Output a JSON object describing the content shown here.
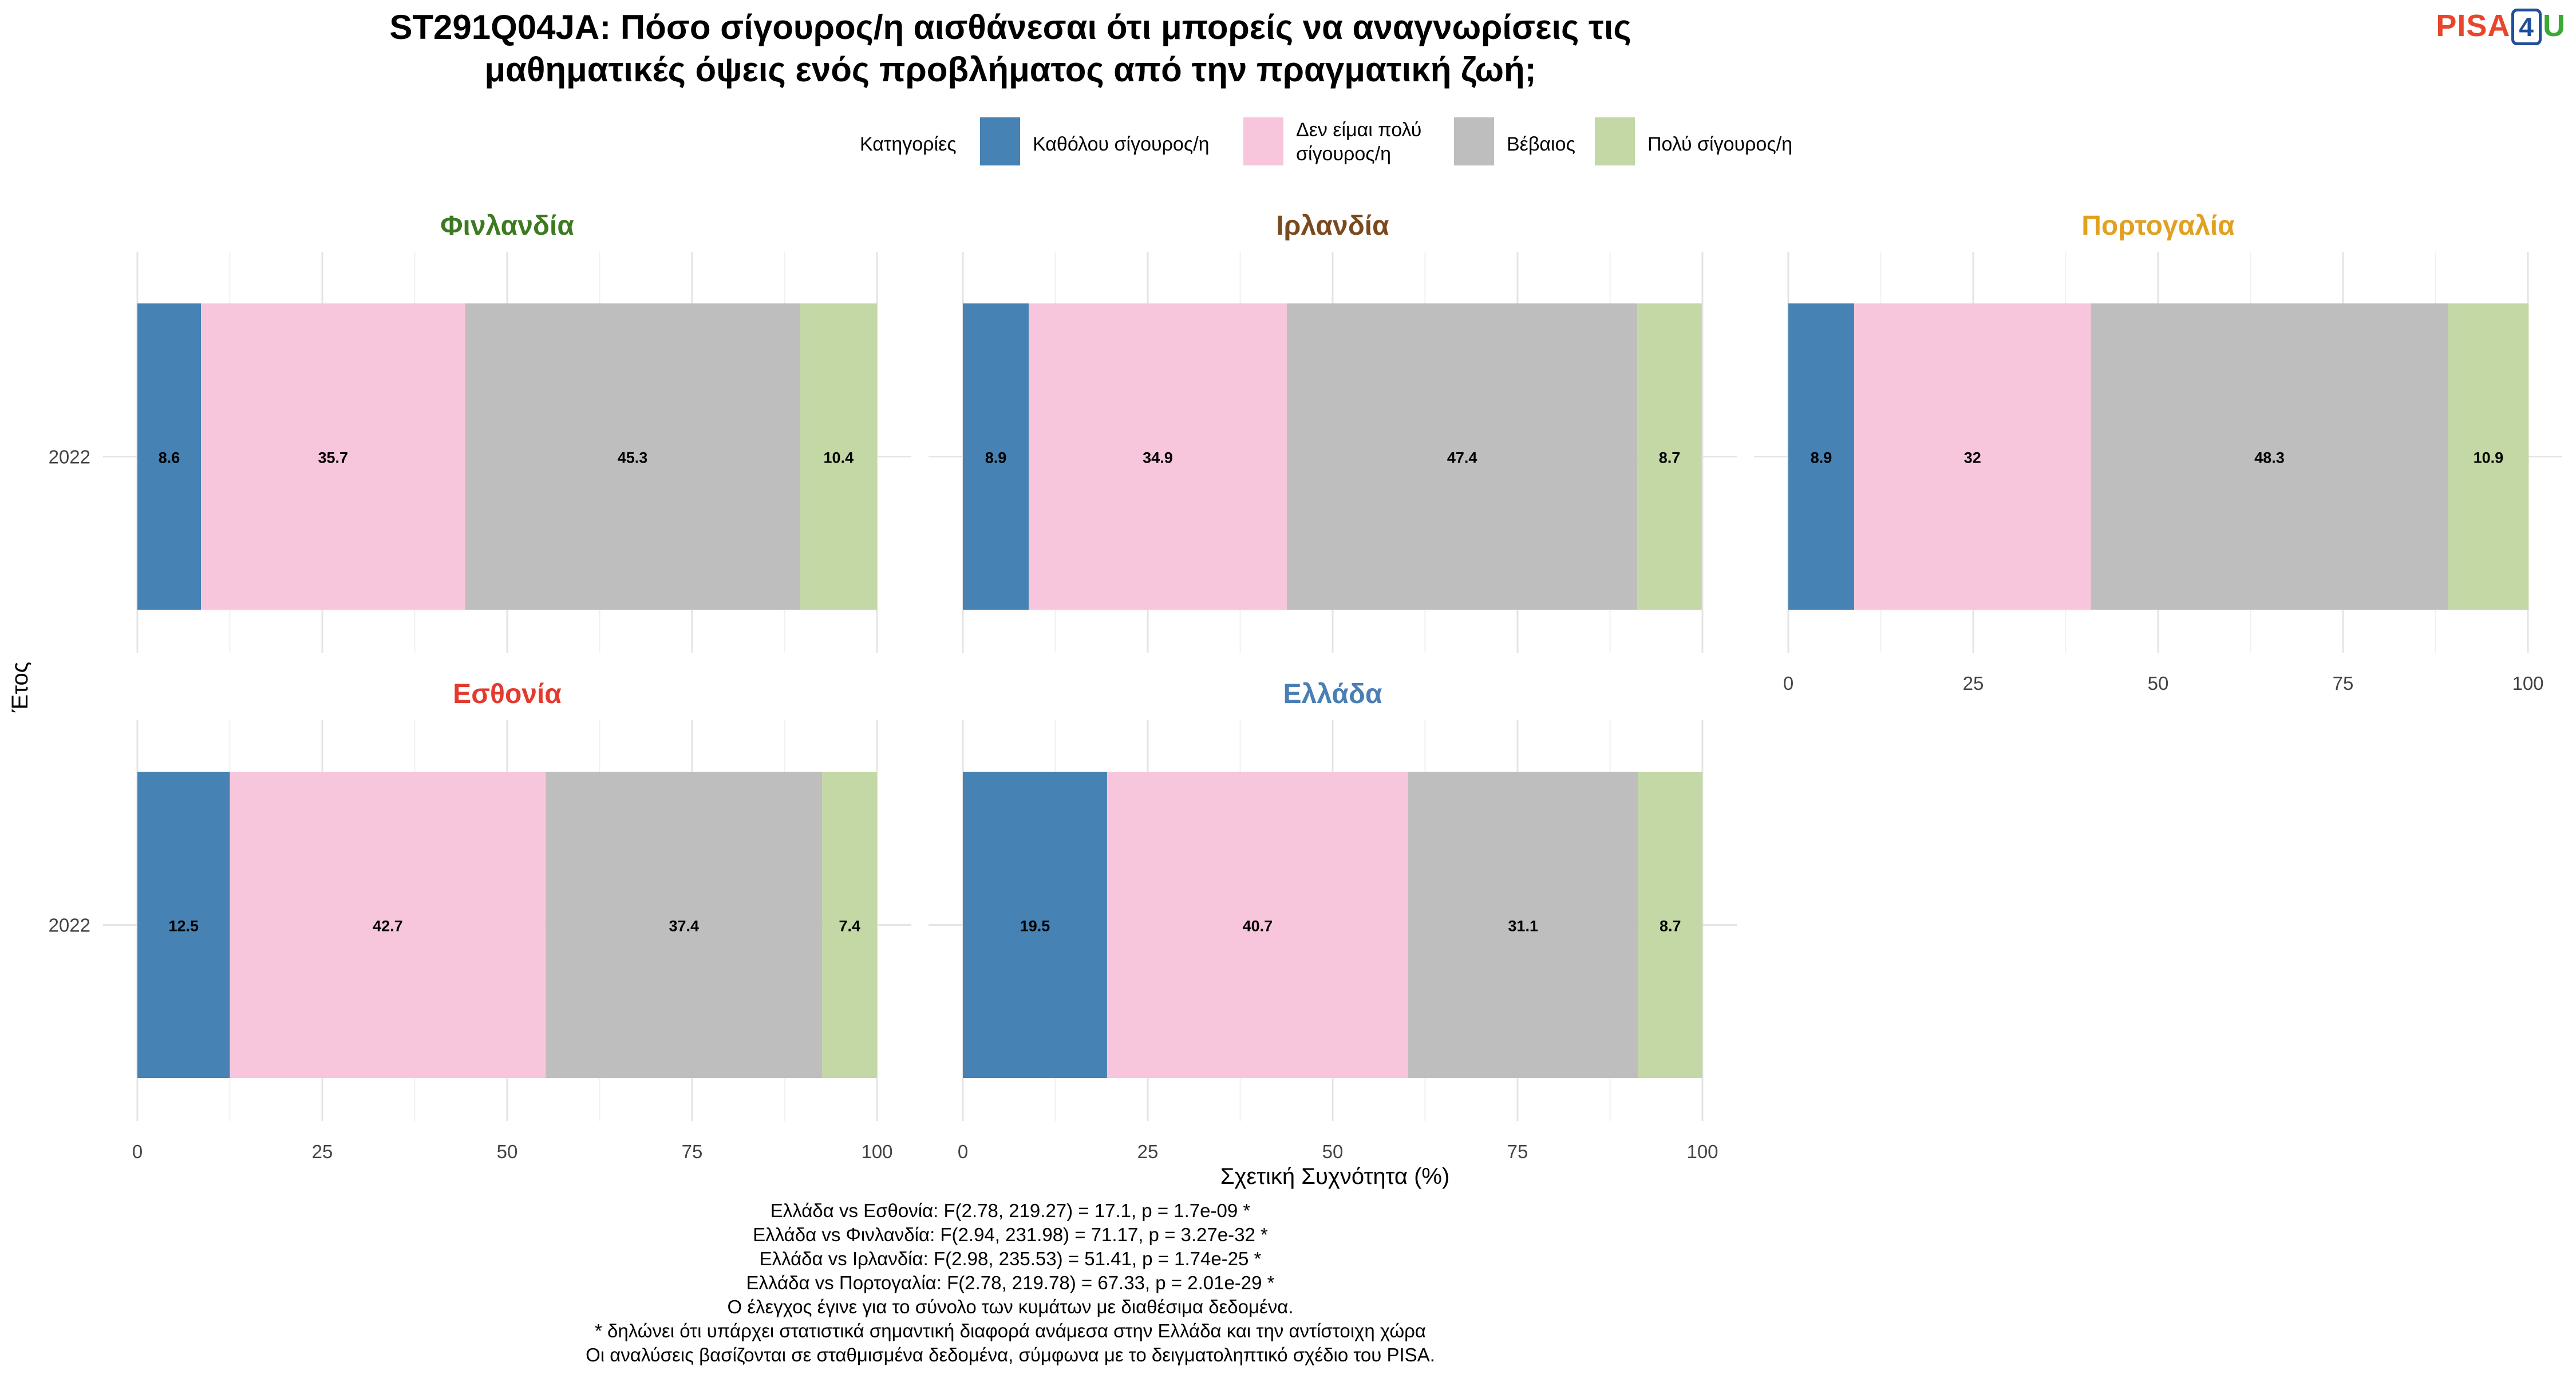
{
  "chart_data": {
    "type": "bar",
    "orientation": "horizontal",
    "stacked": true,
    "title": "ST291Q04JA: Πόσο σίγουρος/η αισθάνεσαι ότι μπορείς να αναγνωρίσεις τις\nμαθηματικές όψεις ενός προβλήματος από την πραγματική ζωή;",
    "legend": {
      "title": "Κατηγορίες",
      "position": "top",
      "items": [
        {
          "label": "Καθόλου σίγουρος/η",
          "color": "#4682b4"
        },
        {
          "label": "Δεν είμαι πολύ\nσίγουρος/η",
          "color": "#f8c6dc"
        },
        {
          "label": "Βέβαιος",
          "color": "#bebebe"
        },
        {
          "label": "Πολύ σίγουρος/η",
          "color": "#c3d8a4"
        }
      ]
    },
    "xlabel": "Σχετική Συχνότητα (%)",
    "ylabel": "Έτος",
    "xlim": [
      0,
      100
    ],
    "x_ticks": [
      "0",
      "25",
      "50",
      "75",
      "100"
    ],
    "grid": true,
    "panels": [
      {
        "name": "Φινλανδία",
        "color": "#3d7a1f",
        "year": "2022",
        "values": [
          8.6,
          35.7,
          45.3,
          10.4
        ],
        "labels": [
          "8.6",
          "35.7",
          "45.3",
          "10.4"
        ]
      },
      {
        "name": "Ιρλανδία",
        "color": "#7a4a1f",
        "year": "2022",
        "values": [
          8.9,
          34.9,
          47.4,
          8.7
        ],
        "labels": [
          "8.9",
          "34.9",
          "47.4",
          "8.7"
        ]
      },
      {
        "name": "Πορτογαλία",
        "color": "#e1a020",
        "year": "2022",
        "values": [
          8.9,
          32,
          48.3,
          10.9
        ],
        "labels": [
          "8.9",
          "32",
          "48.3",
          "10.9"
        ]
      },
      {
        "name": "Εσθονία",
        "color": "#e33b2e",
        "year": "2022",
        "values": [
          12.5,
          42.7,
          37.4,
          7.4
        ],
        "labels": [
          "12.5",
          "42.7",
          "37.4",
          "7.4"
        ]
      },
      {
        "name": "Ελλάδα",
        "color": "#4a7fb5",
        "year": "2022",
        "values": [
          19.5,
          40.7,
          31.1,
          8.7
        ],
        "labels": [
          "19.5",
          "40.7",
          "31.1",
          "8.7"
        ]
      }
    ],
    "notes": [
      "Ελλάδα vs Εσθονία: F(2.78, 219.27) = 17.1, p = 1.7e-09 *",
      "Ελλάδα vs Φινλανδία: F(2.94, 231.98) = 71.17, p = 3.27e-32 *",
      "Ελλάδα vs Ιρλανδία: F(2.98, 235.53) = 51.41, p = 1.74e-25 *",
      "Ελλάδα vs Πορτογαλία: F(2.78, 219.78) = 67.33, p = 2.01e-29 *",
      "Ο έλεγχος έγινε για το σύνολο των κυμάτων με διαθέσιμα δεδομένα.",
      "* δηλώνει ότι υπάρχει στατιστικά σημαντική διαφορά ανάμεσα στην Ελλάδα και την αντίστοιχη χώρα",
      "Οι αναλύσεις βασίζονται σε σταθμισμένα δεδομένα, σύμφωνα με το δειγματοληπτικό σχέδιο του PISA."
    ]
  },
  "logo": {
    "part1": "PISA",
    "part2": "4",
    "part3": "U"
  }
}
